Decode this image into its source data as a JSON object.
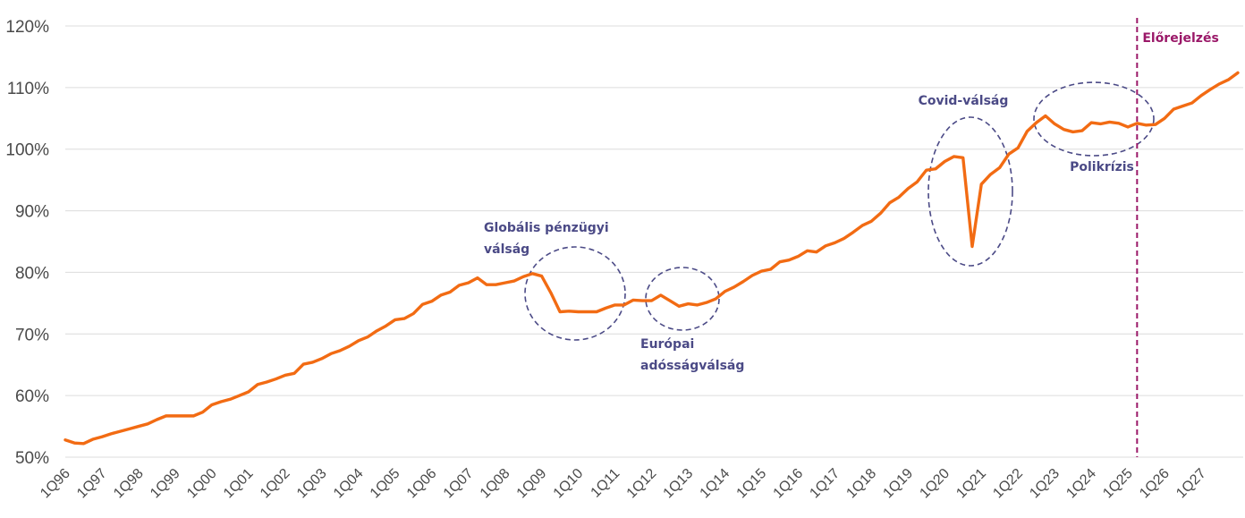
{
  "chart_data": {
    "type": "line",
    "title": "",
    "xlabel": "",
    "ylabel": "",
    "ylim": [
      50,
      120
    ],
    "y_ticks": [
      "50%",
      "60%",
      "70%",
      "80%",
      "90%",
      "100%",
      "110%",
      "120%"
    ],
    "y_tick_values": [
      50,
      60,
      70,
      80,
      90,
      100,
      110,
      120
    ],
    "grid": "horizontal",
    "x_start": "1Q96",
    "x_ticks": [
      "1Q96",
      "1Q97",
      "1Q98",
      "1Q99",
      "1Q00",
      "1Q01",
      "1Q02",
      "1Q03",
      "1Q04",
      "1Q05",
      "1Q06",
      "1Q07",
      "1Q08",
      "1Q09",
      "1Q10",
      "1Q11",
      "1Q12",
      "1Q13",
      "1Q14",
      "1Q15",
      "1Q16",
      "1Q17",
      "1Q18",
      "1Q19",
      "1Q20",
      "1Q21",
      "1Q22",
      "1Q23",
      "1Q24",
      "1Q25",
      "1Q26",
      "1Q27"
    ],
    "series": [
      {
        "color": "#f26b13",
        "values": [
          52.8,
          52.3,
          52.2,
          52.9,
          53.3,
          53.8,
          54.2,
          54.6,
          55.0,
          55.4,
          56.1,
          56.7,
          56.7,
          56.7,
          56.7,
          57.3,
          58.5,
          59.0,
          59.4,
          60.0,
          60.6,
          61.8,
          62.2,
          62.7,
          63.3,
          63.6,
          65.1,
          65.4,
          66.0,
          66.8,
          67.3,
          68.0,
          68.9,
          69.5,
          70.5,
          71.3,
          72.3,
          72.5,
          73.3,
          74.8,
          75.3,
          76.3,
          76.8,
          77.9,
          78.3,
          79.1,
          78.0,
          78.0,
          78.3,
          78.6,
          79.3,
          79.8,
          79.4,
          76.7,
          73.6,
          73.7,
          73.6,
          73.6,
          73.6,
          74.2,
          74.7,
          74.7,
          75.5,
          75.4,
          75.4,
          76.3,
          75.4,
          74.5,
          74.9,
          74.7,
          75.1,
          75.7,
          76.9,
          77.6,
          78.5,
          79.5,
          80.2,
          80.5,
          81.7,
          82.0,
          82.6,
          83.5,
          83.3,
          84.3,
          84.8,
          85.5,
          86.5,
          87.6,
          88.3,
          89.6,
          91.3,
          92.2,
          93.6,
          94.7,
          96.6,
          96.8,
          98.0,
          98.8,
          98.6,
          84.2,
          94.3,
          95.9,
          97.0,
          99.2,
          100.2,
          102.9,
          104.3,
          105.4,
          104.1,
          103.2,
          102.8,
          103.0,
          104.3,
          104.1,
          104.4,
          104.2,
          103.6,
          104.2,
          103.9,
          104.0,
          105.0,
          106.5,
          107.0,
          107.5,
          108.7,
          109.7,
          110.6,
          111.3,
          112.4
        ]
      }
    ],
    "forecast_marker": {
      "label": "Előrejelzés",
      "at_period": "2Q25",
      "color": "#9a1868"
    },
    "annotations": [
      {
        "id": "gfc",
        "lines": [
          "Globális pénzügyi",
          "válság"
        ]
      },
      {
        "id": "euro",
        "lines": [
          "Európai",
          "adósságválság"
        ]
      },
      {
        "id": "covid",
        "lines": [
          "Covid-válság"
        ]
      },
      {
        "id": "poly",
        "lines": [
          "Polikrízis"
        ]
      }
    ]
  }
}
